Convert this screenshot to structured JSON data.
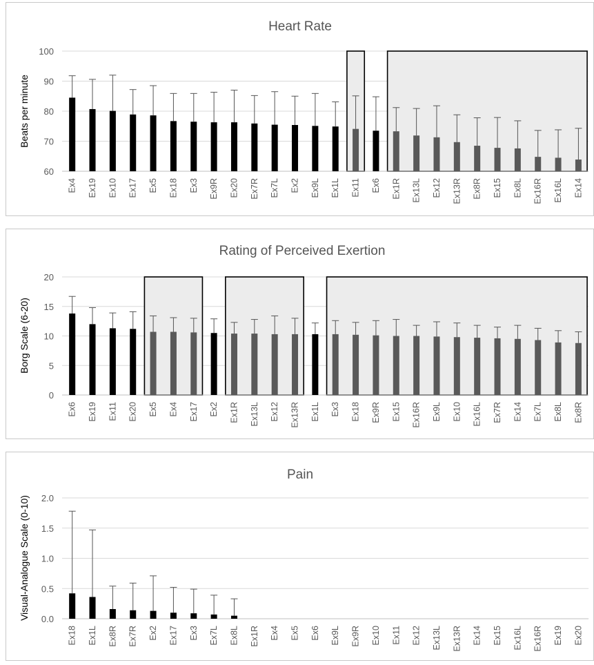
{
  "chart_data": [
    {
      "type": "bar",
      "title": "Heart Rate",
      "ylabel": "Beats per minute",
      "ylim": [
        60,
        100
      ],
      "yticks": [
        60,
        70,
        80,
        90,
        100
      ],
      "grid": true,
      "categories": [
        "Ex4",
        "Ex19",
        "Ex10",
        "Ex17",
        "Ex5",
        "Ex18",
        "Ex3",
        "Ex9R",
        "Ex20",
        "Ex7R",
        "Ex7L",
        "Ex2",
        "Ex9L",
        "Ex1L",
        "Ex11",
        "Ex6",
        "Ex1R",
        "Ex13L",
        "Ex12",
        "Ex13R",
        "Ex8R",
        "Ex15",
        "Ex8L",
        "Ex16R",
        "Ex16L",
        "Ex14"
      ],
      "values": [
        84.5,
        80.7,
        80.1,
        78.9,
        78.6,
        76.7,
        76.5,
        76.3,
        76.3,
        75.9,
        75.5,
        75.4,
        75.1,
        74.9,
        74.1,
        73.5,
        73.3,
        71.9,
        71.3,
        69.7,
        68.5,
        67.8,
        67.6,
        64.8,
        64.5,
        63.9
      ],
      "error_upper": [
        91.8,
        90.6,
        92.0,
        87.2,
        88.5,
        85.9,
        85.9,
        86.3,
        87.0,
        85.2,
        86.5,
        85.0,
        85.9,
        83.1,
        85.1,
        84.8,
        81.2,
        80.9,
        81.8,
        78.8,
        77.8,
        77.9,
        76.8,
        73.6,
        73.8,
        74.3
      ],
      "shaded_groups": [
        [
          14,
          14
        ],
        [
          16,
          25
        ]
      ],
      "bar_colors": {
        "default": "#000000",
        "shaded": "#595959"
      }
    },
    {
      "type": "bar",
      "title": "Rating of Perceived Exertion",
      "ylabel": "Borg Scale (6-20)",
      "ylim": [
        0,
        20
      ],
      "yticks": [
        0,
        5,
        10,
        15,
        20
      ],
      "grid": true,
      "categories": [
        "Ex6",
        "Ex19",
        "Ex11",
        "Ex20",
        "Ex5",
        "Ex4",
        "Ex17",
        "Ex2",
        "Ex1R",
        "Ex13L",
        "Ex12",
        "Ex13R",
        "Ex1L",
        "Ex3",
        "Ex18",
        "Ex9R",
        "Ex15",
        "Ex16R",
        "Ex9L",
        "Ex10",
        "Ex16L",
        "Ex7R",
        "Ex14",
        "Ex7L",
        "Ex8L",
        "Ex8R"
      ],
      "values": [
        13.8,
        12.0,
        11.3,
        11.2,
        10.7,
        10.7,
        10.6,
        10.5,
        10.4,
        10.4,
        10.3,
        10.3,
        10.3,
        10.3,
        10.2,
        10.1,
        10.0,
        10.0,
        9.9,
        9.8,
        9.7,
        9.6,
        9.5,
        9.3,
        8.9,
        8.8
      ],
      "error_upper": [
        16.7,
        14.8,
        13.9,
        14.1,
        13.4,
        13.1,
        13.0,
        12.9,
        12.3,
        12.8,
        13.4,
        13.0,
        12.2,
        12.6,
        12.3,
        12.6,
        12.8,
        11.8,
        12.4,
        12.2,
        11.8,
        11.5,
        11.8,
        11.3,
        10.9,
        10.7
      ],
      "shaded_groups": [
        [
          4,
          6
        ],
        [
          8,
          11
        ],
        [
          13,
          25
        ]
      ],
      "bar_colors": {
        "default": "#000000",
        "shaded": "#595959"
      }
    },
    {
      "type": "bar",
      "title": "Pain",
      "ylabel": "Visual-Analogue Scale (0-10)",
      "ylim": [
        0,
        2
      ],
      "yticks": [
        "0.0",
        "0.5",
        "1.0",
        "1.5",
        "2.0"
      ],
      "grid": true,
      "categories": [
        "Ex18",
        "Ex1L",
        "Ex8R",
        "Ex7R",
        "Ex2",
        "Ex17",
        "Ex3",
        "Ex7L",
        "Ex8L",
        "Ex1R",
        "Ex4",
        "Ex5",
        "Ex6",
        "Ex9L",
        "Ex9R",
        "Ex10",
        "Ex11",
        "Ex12",
        "Ex13L",
        "Ex13R",
        "Ex14",
        "Ex15",
        "Ex16L",
        "Ex16R",
        "Ex19",
        "Ex20"
      ],
      "values": [
        0.42,
        0.36,
        0.16,
        0.14,
        0.13,
        0.1,
        0.09,
        0.07,
        0.05,
        0,
        0,
        0,
        0,
        0,
        0,
        0,
        0,
        0,
        0,
        0,
        0,
        0,
        0,
        0,
        0,
        0
      ],
      "error_upper": [
        1.78,
        1.47,
        0.54,
        0.59,
        0.71,
        0.52,
        0.49,
        0.39,
        0.33,
        null,
        null,
        null,
        null,
        null,
        null,
        null,
        null,
        null,
        null,
        null,
        null,
        null,
        null,
        null,
        null,
        null
      ],
      "shaded_groups": [],
      "bar_colors": {
        "default": "#000000",
        "shaded": "#595959"
      }
    }
  ]
}
